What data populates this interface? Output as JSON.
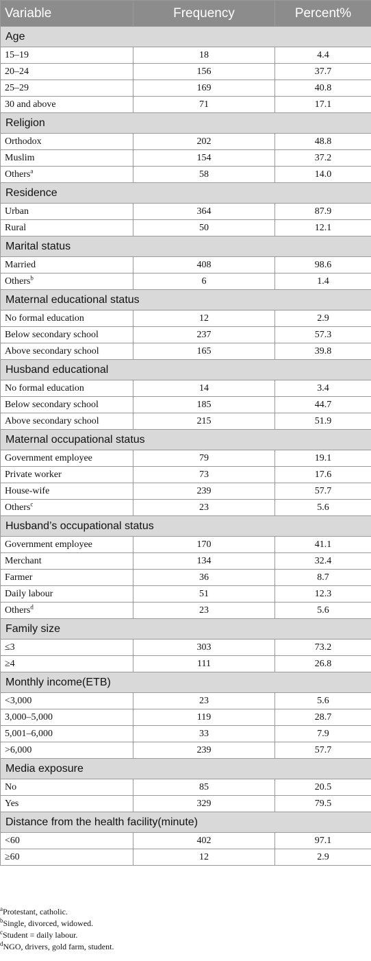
{
  "header": {
    "variable": "Variable",
    "frequency": "Frequency",
    "percent": "Percent%"
  },
  "groups": [
    {
      "name": "Age",
      "rows": [
        {
          "label": "15–19",
          "frequency": "18",
          "percent": "4.4"
        },
        {
          "label": "20–24",
          "frequency": "156",
          "percent": "37.7"
        },
        {
          "label": "25–29",
          "frequency": "169",
          "percent": "40.8"
        },
        {
          "label": "30 and above",
          "frequency": "71",
          "percent": "17.1"
        }
      ]
    },
    {
      "name": "Religion",
      "rows": [
        {
          "label": "Orthodox",
          "frequency": "202",
          "percent": "48.8"
        },
        {
          "label": "Muslim",
          "frequency": "154",
          "percent": "37.2"
        },
        {
          "label": "Others",
          "sup": "a",
          "frequency": "58",
          "percent": "14.0"
        }
      ]
    },
    {
      "name": "Residence",
      "rows": [
        {
          "label": "Urban",
          "frequency": "364",
          "percent": "87.9"
        },
        {
          "label": "Rural",
          "frequency": "50",
          "percent": "12.1"
        }
      ]
    },
    {
      "name": "Marital status",
      "rows": [
        {
          "label": "Married",
          "frequency": "408",
          "percent": "98.6"
        },
        {
          "label": "Others",
          "sup": "b",
          "frequency": "6",
          "percent": "1.4"
        }
      ]
    },
    {
      "name": "Maternal educational status",
      "rows": [
        {
          "label": "No formal education",
          "frequency": "12",
          "percent": "2.9"
        },
        {
          "label": "Below secondary school",
          "frequency": "237",
          "percent": "57.3"
        },
        {
          "label": "Above secondary school",
          "frequency": "165",
          "percent": "39.8"
        }
      ]
    },
    {
      "name": "Husband educational",
      "rows": [
        {
          "label": "No formal education",
          "frequency": "14",
          "percent": "3.4"
        },
        {
          "label": "Below secondary school",
          "frequency": "185",
          "percent": "44.7"
        },
        {
          "label": "Above secondary school",
          "frequency": "215",
          "percent": "51.9"
        }
      ]
    },
    {
      "name": "Maternal occupational status",
      "rows": [
        {
          "label": "Government employee",
          "frequency": "79",
          "percent": "19.1"
        },
        {
          "label": "Private worker",
          "frequency": "73",
          "percent": "17.6"
        },
        {
          "label": "House-wife",
          "frequency": "239",
          "percent": "57.7"
        },
        {
          "label": "Others",
          "sup": "c",
          "frequency": "23",
          "percent": "5.6"
        }
      ]
    },
    {
      "name": "Husband’s occupational status",
      "rows": [
        {
          "label": "Government employee",
          "frequency": "170",
          "percent": "41.1"
        },
        {
          "label": "Merchant",
          "frequency": "134",
          "percent": "32.4"
        },
        {
          "label": "Farmer",
          "frequency": "36",
          "percent": "8.7"
        },
        {
          "label": "Daily labour",
          "frequency": "51",
          "percent": "12.3"
        },
        {
          "label": "Others",
          "sup": "d",
          "frequency": "23",
          "percent": "5.6"
        }
      ]
    },
    {
      "name": "Family size",
      "rows": [
        {
          "label": "≤3",
          "frequency": "303",
          "percent": "73.2"
        },
        {
          "label": "≥4",
          "frequency": "111",
          "percent": "26.8"
        }
      ]
    },
    {
      "name": "Monthly income(ETB)",
      "rows": [
        {
          "label": "<3,000",
          "frequency": "23",
          "percent": "5.6"
        },
        {
          "label": "3,000–5,000",
          "frequency": "119",
          "percent": "28.7"
        },
        {
          "label": "5,001–6,000",
          "frequency": "33",
          "percent": "7.9"
        },
        {
          "label": ">6,000",
          "frequency": "239",
          "percent": "57.7"
        }
      ]
    },
    {
      "name": "Media exposure",
      "rows": [
        {
          "label": "No",
          "frequency": "85",
          "percent": "20.5"
        },
        {
          "label": "Yes",
          "frequency": "329",
          "percent": "79.5"
        }
      ]
    },
    {
      "name": "Distance from the health facility(minute)",
      "rows": [
        {
          "label": "<60",
          "frequency": "402",
          "percent": "97.1"
        },
        {
          "label": "≥60",
          "frequency": "12",
          "percent": "2.9"
        }
      ]
    }
  ],
  "footnotes": [
    {
      "mark": "a",
      "text": "Protestant, catholic."
    },
    {
      "mark": "b",
      "text": "Single, divorced, widowed."
    },
    {
      "mark": "c",
      "text": "Student = daily labour."
    },
    {
      "mark": "d",
      "text": "NGO, drivers, gold farm, student."
    }
  ]
}
